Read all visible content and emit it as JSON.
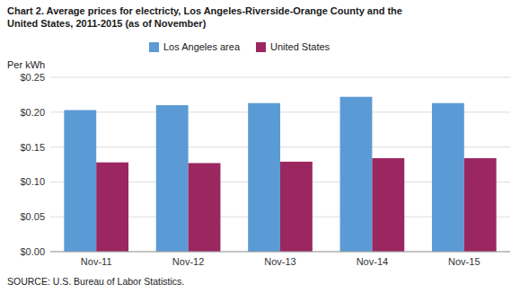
{
  "chart_data": {
    "type": "bar",
    "title": "Chart 2. Average prices for electricty, Los Angeles-Riverside-Orange County and the\nUnited States, 2011-2015  (as of November)",
    "ylabel": "Per kWh",
    "source": "SOURCE: U.S. Bureau of Labor Statistics.",
    "categories": [
      "Nov-11",
      "Nov-12",
      "Nov-13",
      "Nov-14",
      "Nov-15"
    ],
    "series": [
      {
        "name": "Los Angeles area",
        "color": "#5B9BD5",
        "values": [
          0.203,
          0.21,
          0.213,
          0.222,
          0.213
        ]
      },
      {
        "name": "United States",
        "color": "#9B2761",
        "values": [
          0.128,
          0.127,
          0.129,
          0.134,
          0.134
        ]
      }
    ],
    "ylim": [
      0,
      0.25
    ],
    "yticks": [
      {
        "value": 0.0,
        "label": "$0.00"
      },
      {
        "value": 0.05,
        "label": "$0.05"
      },
      {
        "value": 0.1,
        "label": "$0.10"
      },
      {
        "value": 0.15,
        "label": "$0.15"
      },
      {
        "value": 0.2,
        "label": "$0.20"
      },
      {
        "value": 0.25,
        "label": "$0.25"
      }
    ],
    "grid": true,
    "legend": "upper left"
  }
}
